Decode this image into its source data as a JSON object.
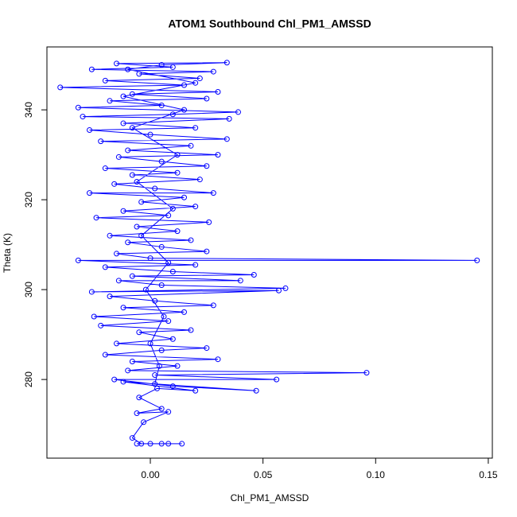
{
  "chart_data": {
    "type": "scatter",
    "title": "ATOM1 Southbound Chl_PM1_AMSSD",
    "x_label": "Chl_PM1_AMSSD",
    "y_label": "Theta (K)",
    "color": "#0000ff",
    "connect": true,
    "xlim": [
      -0.0459,
      0.1518
    ],
    "ylim": [
      262.5,
      354.0
    ],
    "xticks": [
      {
        "value": 0,
        "label": "0.00"
      },
      0.05,
      {
        "value": 0.1,
        "label": "0.10"
      },
      0.15
    ],
    "yticks": [
      280,
      300,
      320,
      340
    ],
    "x": [
      0.0,
      0.005,
      -0.006,
      0.008,
      0.014,
      -0.004,
      -0.008,
      -0.003,
      0.008,
      -0.006,
      0.005,
      -0.005,
      0.003,
      0.02,
      -0.012,
      0.047,
      0.01,
      -0.016,
      0.056,
      0.002,
      0.096,
      -0.01,
      0.012,
      -0.008,
      0.03,
      -0.02,
      0.005,
      0.025,
      -0.015,
      0.01,
      -0.005,
      0.018,
      -0.022,
      0.008,
      -0.025,
      0.015,
      -0.012,
      0.028,
      0.002,
      -0.018,
      0.057,
      -0.026,
      0.06,
      0.005,
      -0.014,
      0.04,
      -0.008,
      0.046,
      0.01,
      -0.02,
      0.02,
      -0.032,
      0.145,
      0.0,
      -0.015,
      0.025,
      0.005,
      -0.01,
      0.018,
      -0.018,
      0.012,
      -0.006,
      0.026,
      -0.024,
      0.008,
      -0.012,
      0.02,
      -0.004,
      0.015,
      -0.027,
      0.028,
      0.002,
      -0.016,
      0.022,
      -0.008,
      0.012,
      -0.02,
      0.025,
      0.005,
      -0.014,
      0.03,
      -0.01,
      0.018,
      -0.022,
      0.034,
      0.0,
      -0.027,
      0.02,
      -0.012,
      0.035,
      -0.03,
      0.01,
      0.039,
      -0.032,
      0.005,
      -0.018,
      0.025,
      -0.008,
      0.03,
      -0.04,
      0.015,
      -0.02,
      0.022,
      -0.005,
      0.028,
      -0.026,
      0.01,
      -0.015,
      0.034,
      0.005,
      -0.01,
      0.02,
      -0.012,
      0.015,
      -0.008,
      0.012,
      -0.006,
      0.01,
      -0.004,
      0.008,
      -0.002,
      0.006,
      0.0,
      0.004,
      0.002
    ],
    "values": [
      265.7,
      265.7,
      265.7,
      265.7,
      265.7,
      265.7,
      267.0,
      270.5,
      272.8,
      272.5,
      273.5,
      276.0,
      278.0,
      277.5,
      279.5,
      277.5,
      278.5,
      280.0,
      280.0,
      281.0,
      281.5,
      282.0,
      283.0,
      284.0,
      284.5,
      285.5,
      286.5,
      287.0,
      288.0,
      289.0,
      290.5,
      291.0,
      292.0,
      293.0,
      294.0,
      295.0,
      296.0,
      296.5,
      297.5,
      298.5,
      299.8,
      299.5,
      300.3,
      301.0,
      302.0,
      302.0,
      303.0,
      303.3,
      304.0,
      305.0,
      305.5,
      306.5,
      306.5,
      307.0,
      308.0,
      308.5,
      309.5,
      310.5,
      311.0,
      312.0,
      313.0,
      314.0,
      315.0,
      316.0,
      316.5,
      317.5,
      318.5,
      319.5,
      320.5,
      321.5,
      321.5,
      322.5,
      323.5,
      324.5,
      325.5,
      326.0,
      327.0,
      327.5,
      328.5,
      329.5,
      330.0,
      331.0,
      332.0,
      333.0,
      333.5,
      334.5,
      335.5,
      336.0,
      337.0,
      338.0,
      338.5,
      339.0,
      339.5,
      340.5,
      341.0,
      342.0,
      342.5,
      343.5,
      344.0,
      345.0,
      345.5,
      346.5,
      347.0,
      348.0,
      348.5,
      349.0,
      349.5,
      350.3,
      350.5,
      350.0,
      349.0,
      346.0,
      343.0,
      340.0,
      336.0,
      330.0,
      324.0,
      318.0,
      312.0,
      306.0,
      300.0,
      294.0,
      288.0,
      283.0,
      279.0
    ]
  }
}
